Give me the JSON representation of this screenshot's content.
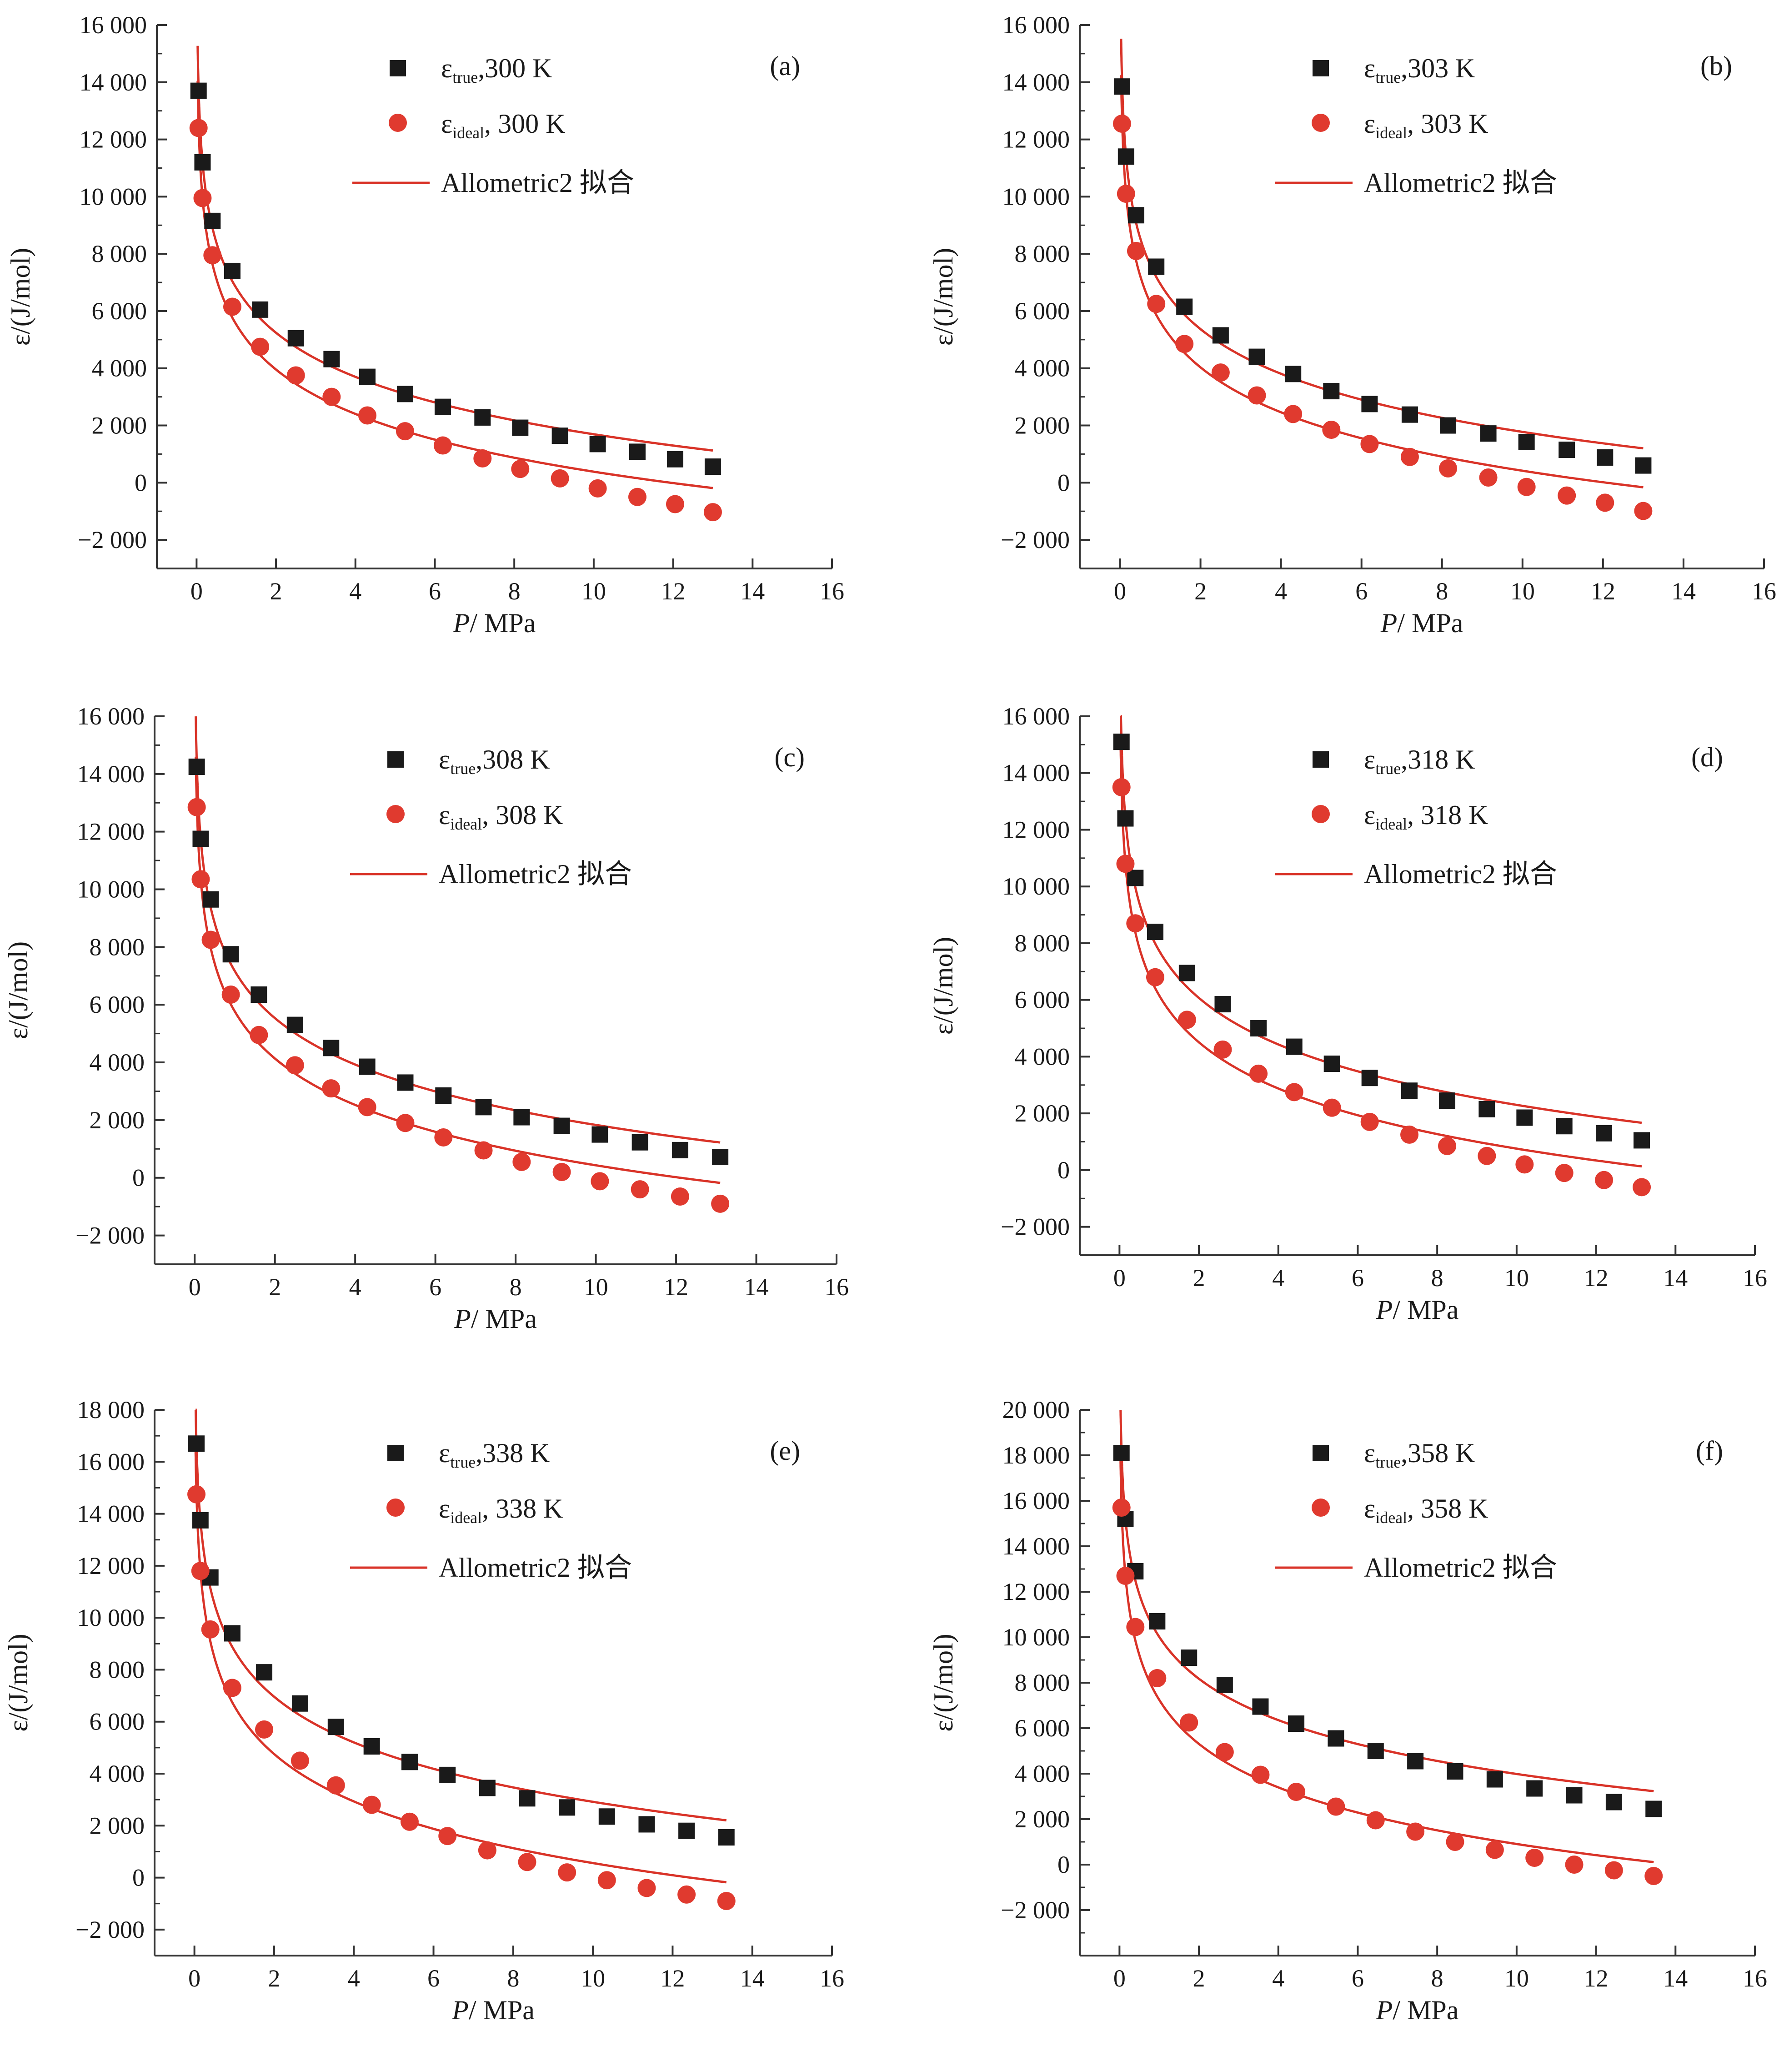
{
  "colors": {
    "true_marker": "#1a1a1a",
    "ideal_marker": "#e03a2f",
    "fit_line": "#d93328",
    "axis": "#333333"
  },
  "chart_data": [
    {
      "type": "scatter",
      "panel_label": "(a)",
      "xlabel_var": "P",
      "xlabel_unit": "/ MPa",
      "ylabel": "ε/(J/mol)",
      "xlim": [
        -1,
        16
      ],
      "ylim": [
        -3000,
        16000
      ],
      "xticks": [
        0,
        2,
        4,
        6,
        8,
        10,
        12,
        14,
        16
      ],
      "xtick_labels": [
        "0",
        "2",
        "4",
        "6",
        "8",
        "10",
        "12",
        "14",
        "16"
      ],
      "yticks": [
        -2000,
        0,
        2000,
        4000,
        6000,
        8000,
        10000,
        12000,
        14000,
        16000
      ],
      "ytick_labels": [
        "−2 000",
        "0",
        "2 000",
        "4 000",
        "6 000",
        "8 000",
        "10 000",
        "12 000",
        "14 000",
        "16 000"
      ],
      "legend": {
        "true_main": "ε",
        "true_sub": "true",
        "true_rest": ",300 K",
        "ideal_main": "ε",
        "ideal_sub": "ideal",
        "ideal_rest": ", 300 K",
        "fit": "Allometric2 拟合"
      },
      "series": [
        {
          "name": "ε_true",
          "marker": "square",
          "x": [
            0.05,
            0.15,
            0.4,
            0.9,
            1.6,
            2.5,
            3.4,
            4.3,
            5.25,
            6.2,
            7.2,
            8.15,
            9.15,
            10.1,
            11.1,
            12.05,
            13.0
          ],
          "y": [
            13700,
            11200,
            9150,
            7400,
            6050,
            5050,
            4320,
            3700,
            3100,
            2650,
            2280,
            1920,
            1640,
            1350,
            1080,
            820,
            560
          ]
        },
        {
          "name": "ε_ideal",
          "marker": "circle",
          "x": [
            0.05,
            0.15,
            0.4,
            0.9,
            1.6,
            2.5,
            3.4,
            4.3,
            5.25,
            6.2,
            7.2,
            8.15,
            9.15,
            10.1,
            11.1,
            12.05,
            13.0
          ],
          "y": [
            12400,
            9950,
            7950,
            6150,
            4750,
            3750,
            3000,
            2350,
            1800,
            1300,
            850,
            480,
            150,
            -200,
            -500,
            -750,
            -1030
          ]
        }
      ]
    },
    {
      "type": "scatter",
      "panel_label": "(b)",
      "xlabel_var": "P",
      "xlabel_unit": "/ MPa",
      "ylabel": "ε/(J/mol)",
      "xlim": [
        -1,
        16
      ],
      "ylim": [
        -3000,
        16000
      ],
      "xticks": [
        0,
        2,
        4,
        6,
        8,
        10,
        12,
        14,
        16
      ],
      "xtick_labels": [
        "0",
        "2",
        "4",
        "6",
        "8",
        "10",
        "12",
        "14",
        "16"
      ],
      "yticks": [
        -2000,
        0,
        2000,
        4000,
        6000,
        8000,
        10000,
        12000,
        14000,
        16000
      ],
      "ytick_labels": [
        "−2 000",
        "0",
        "2 000",
        "4 000",
        "6 000",
        "8 000",
        "10 000",
        "12 000",
        "14 000",
        "16 000"
      ],
      "legend": {
        "true_main": "ε",
        "true_sub": "true",
        "true_rest": ",303 K",
        "ideal_main": "ε",
        "ideal_sub": "ideal",
        "ideal_rest": ", 303 K",
        "fit": "Allometric2 拟合"
      },
      "series": [
        {
          "name": "ε_true",
          "marker": "square",
          "x": [
            0.05,
            0.15,
            0.4,
            0.9,
            1.6,
            2.5,
            3.4,
            4.3,
            5.25,
            6.2,
            7.2,
            8.15,
            9.15,
            10.1,
            11.1,
            12.05,
            13.0
          ],
          "y": [
            13850,
            11400,
            9350,
            7550,
            6150,
            5150,
            4400,
            3800,
            3200,
            2750,
            2380,
            2000,
            1720,
            1420,
            1150,
            880,
            600
          ]
        },
        {
          "name": "ε_ideal",
          "marker": "circle",
          "x": [
            0.05,
            0.15,
            0.4,
            0.9,
            1.6,
            2.5,
            3.4,
            4.3,
            5.25,
            6.2,
            7.2,
            8.15,
            9.15,
            10.1,
            11.1,
            12.05,
            13.0
          ],
          "y": [
            12550,
            10100,
            8100,
            6250,
            4850,
            3850,
            3050,
            2400,
            1850,
            1350,
            900,
            500,
            180,
            -150,
            -450,
            -700,
            -990
          ]
        }
      ]
    },
    {
      "type": "scatter",
      "panel_label": "(c)",
      "xlabel_var": "P",
      "xlabel_unit": "/ MPa",
      "ylabel": "ε/(J/mol)",
      "xlim": [
        -1,
        16
      ],
      "ylim": [
        -3000,
        16000
      ],
      "xticks": [
        0,
        2,
        4,
        6,
        8,
        10,
        12,
        14,
        16
      ],
      "xtick_labels": [
        "0",
        "2",
        "4",
        "6",
        "8",
        "10",
        "12",
        "14",
        "16"
      ],
      "yticks": [
        -2000,
        0,
        2000,
        4000,
        6000,
        8000,
        10000,
        12000,
        14000,
        16000
      ],
      "ytick_labels": [
        "−2 000",
        "0",
        "2 000",
        "4 000",
        "6 000",
        "8 000",
        "10 000",
        "12 000",
        "14 000",
        "16 000"
      ],
      "legend": {
        "true_main": "ε",
        "true_sub": "true",
        "true_rest": ",308 K",
        "ideal_main": "ε",
        "ideal_sub": "ideal",
        "ideal_rest": ", 308 K",
        "fit": "Allometric2 拟合"
      },
      "series": [
        {
          "name": "ε_true",
          "marker": "square",
          "x": [
            0.05,
            0.15,
            0.4,
            0.9,
            1.6,
            2.5,
            3.4,
            4.3,
            5.25,
            6.2,
            7.2,
            8.15,
            9.15,
            10.1,
            11.1,
            12.1,
            13.1
          ],
          "y": [
            14250,
            11750,
            9650,
            7750,
            6350,
            5300,
            4500,
            3850,
            3300,
            2850,
            2450,
            2100,
            1800,
            1500,
            1230,
            960,
            720
          ]
        },
        {
          "name": "ε_ideal",
          "marker": "circle",
          "x": [
            0.05,
            0.15,
            0.4,
            0.9,
            1.6,
            2.5,
            3.4,
            4.3,
            5.25,
            6.2,
            7.2,
            8.15,
            9.15,
            10.1,
            11.1,
            12.1,
            13.1
          ],
          "y": [
            12850,
            10350,
            8250,
            6350,
            4950,
            3900,
            3100,
            2450,
            1900,
            1400,
            950,
            550,
            200,
            -120,
            -400,
            -650,
            -900
          ]
        }
      ]
    },
    {
      "type": "scatter",
      "panel_label": "(d)",
      "xlabel_var": "P",
      "xlabel_unit": "/ MPa",
      "ylabel": "ε/(J/mol)",
      "xlim": [
        -1,
        16
      ],
      "ylim": [
        -3000,
        16000
      ],
      "xticks": [
        0,
        2,
        4,
        6,
        8,
        10,
        12,
        14,
        16
      ],
      "xtick_labels": [
        "0",
        "2",
        "4",
        "6",
        "8",
        "10",
        "12",
        "14",
        "16"
      ],
      "yticks": [
        -2000,
        0,
        2000,
        4000,
        6000,
        8000,
        10000,
        12000,
        14000,
        16000
      ],
      "ytick_labels": [
        "−2 000",
        "0",
        "2 000",
        "4 000",
        "6 000",
        "8 000",
        "10 000",
        "12 000",
        "14 000",
        "16 000"
      ],
      "legend": {
        "true_main": "ε",
        "true_sub": "true",
        "true_rest": ",318 K",
        "ideal_main": "ε",
        "ideal_sub": "ideal",
        "ideal_rest": ", 318 K",
        "fit": "Allometric2 拟合"
      },
      "series": [
        {
          "name": "ε_true",
          "marker": "square",
          "x": [
            0.05,
            0.15,
            0.4,
            0.9,
            1.7,
            2.6,
            3.5,
            4.4,
            5.35,
            6.3,
            7.3,
            8.25,
            9.25,
            10.2,
            11.2,
            12.2,
            13.15
          ],
          "y": [
            15100,
            12400,
            10300,
            8400,
            6950,
            5850,
            5000,
            4350,
            3750,
            3250,
            2800,
            2450,
            2150,
            1850,
            1550,
            1300,
            1050
          ]
        },
        {
          "name": "ε_ideal",
          "marker": "circle",
          "x": [
            0.05,
            0.15,
            0.4,
            0.9,
            1.7,
            2.6,
            3.5,
            4.4,
            5.35,
            6.3,
            7.3,
            8.25,
            9.25,
            10.2,
            11.2,
            12.2,
            13.15
          ],
          "y": [
            13500,
            10800,
            8700,
            6800,
            5300,
            4250,
            3400,
            2750,
            2200,
            1700,
            1250,
            850,
            500,
            200,
            -100,
            -350,
            -600
          ]
        }
      ]
    },
    {
      "type": "scatter",
      "panel_label": "(e)",
      "xlabel_var": "P",
      "xlabel_unit": "/ MPa",
      "ylabel": "ε/(J/mol)",
      "xlim": [
        -1,
        16
      ],
      "ylim": [
        -3000,
        18000
      ],
      "xticks": [
        0,
        2,
        4,
        6,
        8,
        10,
        12,
        14,
        16
      ],
      "xtick_labels": [
        "0",
        "2",
        "4",
        "6",
        "8",
        "10",
        "12",
        "14",
        "16"
      ],
      "yticks": [
        -2000,
        0,
        2000,
        4000,
        6000,
        8000,
        10000,
        12000,
        14000,
        16000,
        18000
      ],
      "ytick_labels": [
        "−2 000",
        "0",
        "2 000",
        "4 000",
        "6 000",
        "8 000",
        "10 000",
        "12 000",
        "14 000",
        "16 000",
        "18 000"
      ],
      "legend": {
        "true_main": "ε",
        "true_sub": "true",
        "true_rest": ",338 K",
        "ideal_main": "ε",
        "ideal_sub": "ideal",
        "ideal_rest": ", 338 K",
        "fit": "Allometric2 拟合"
      },
      "series": [
        {
          "name": "ε_true",
          "marker": "square",
          "x": [
            0.05,
            0.15,
            0.4,
            0.95,
            1.75,
            2.65,
            3.55,
            4.45,
            5.4,
            6.35,
            7.35,
            8.35,
            9.35,
            10.35,
            11.35,
            12.35,
            13.35
          ],
          "y": [
            16700,
            13750,
            11550,
            9400,
            7900,
            6700,
            5800,
            5050,
            4450,
            3950,
            3450,
            3050,
            2700,
            2350,
            2050,
            1800,
            1550
          ]
        },
        {
          "name": "ε_ideal",
          "marker": "circle",
          "x": [
            0.05,
            0.15,
            0.4,
            0.95,
            1.75,
            2.65,
            3.55,
            4.45,
            5.4,
            6.35,
            7.35,
            8.35,
            9.35,
            10.35,
            11.35,
            12.35,
            13.35
          ],
          "y": [
            14750,
            11800,
            9550,
            7300,
            5700,
            4500,
            3550,
            2800,
            2150,
            1600,
            1050,
            600,
            200,
            -100,
            -400,
            -650,
            -900
          ]
        }
      ]
    },
    {
      "type": "scatter",
      "panel_label": "(f)",
      "xlabel_var": "P",
      "xlabel_unit": "/ MPa",
      "ylabel": "ε/(J/mol)",
      "xlim": [
        -1,
        16
      ],
      "ylim": [
        -4000,
        20000
      ],
      "xticks": [
        0,
        2,
        4,
        6,
        8,
        10,
        12,
        14,
        16
      ],
      "xtick_labels": [
        "0",
        "2",
        "4",
        "6",
        "8",
        "10",
        "12",
        "14",
        "16"
      ],
      "yticks": [
        -2000,
        0,
        2000,
        4000,
        6000,
        8000,
        10000,
        12000,
        14000,
        16000,
        18000,
        20000
      ],
      "ytick_labels": [
        "−2 000",
        "0",
        "2 000",
        "4 000",
        "6 000",
        "8 000",
        "10 000",
        "12 000",
        "14 000",
        "16 000",
        "18 000",
        "20 000"
      ],
      "legend": {
        "true_main": "ε",
        "true_sub": "true",
        "true_rest": ",358 K",
        "ideal_main": "ε",
        "ideal_sub": "ideal",
        "ideal_rest": ", 358 K",
        "fit": "Allometric2 拟合"
      },
      "series": [
        {
          "name": "ε_true",
          "marker": "square",
          "x": [
            0.05,
            0.15,
            0.4,
            0.95,
            1.75,
            2.65,
            3.55,
            4.45,
            5.45,
            6.45,
            7.45,
            8.45,
            9.45,
            10.45,
            11.45,
            12.45,
            13.45
          ],
          "y": [
            18100,
            15200,
            12900,
            10700,
            9100,
            7900,
            6950,
            6200,
            5550,
            5000,
            4550,
            4100,
            3750,
            3350,
            3050,
            2750,
            2450
          ]
        },
        {
          "name": "ε_ideal",
          "marker": "circle",
          "x": [
            0.05,
            0.15,
            0.4,
            0.95,
            1.75,
            2.65,
            3.55,
            4.45,
            5.45,
            6.45,
            7.45,
            8.45,
            9.45,
            10.45,
            11.45,
            12.45,
            13.45
          ],
          "y": [
            15700,
            12700,
            10450,
            8200,
            6250,
            4950,
            3950,
            3200,
            2550,
            1950,
            1450,
            1000,
            650,
            300,
            0,
            -250,
            -500
          ]
        }
      ]
    }
  ]
}
